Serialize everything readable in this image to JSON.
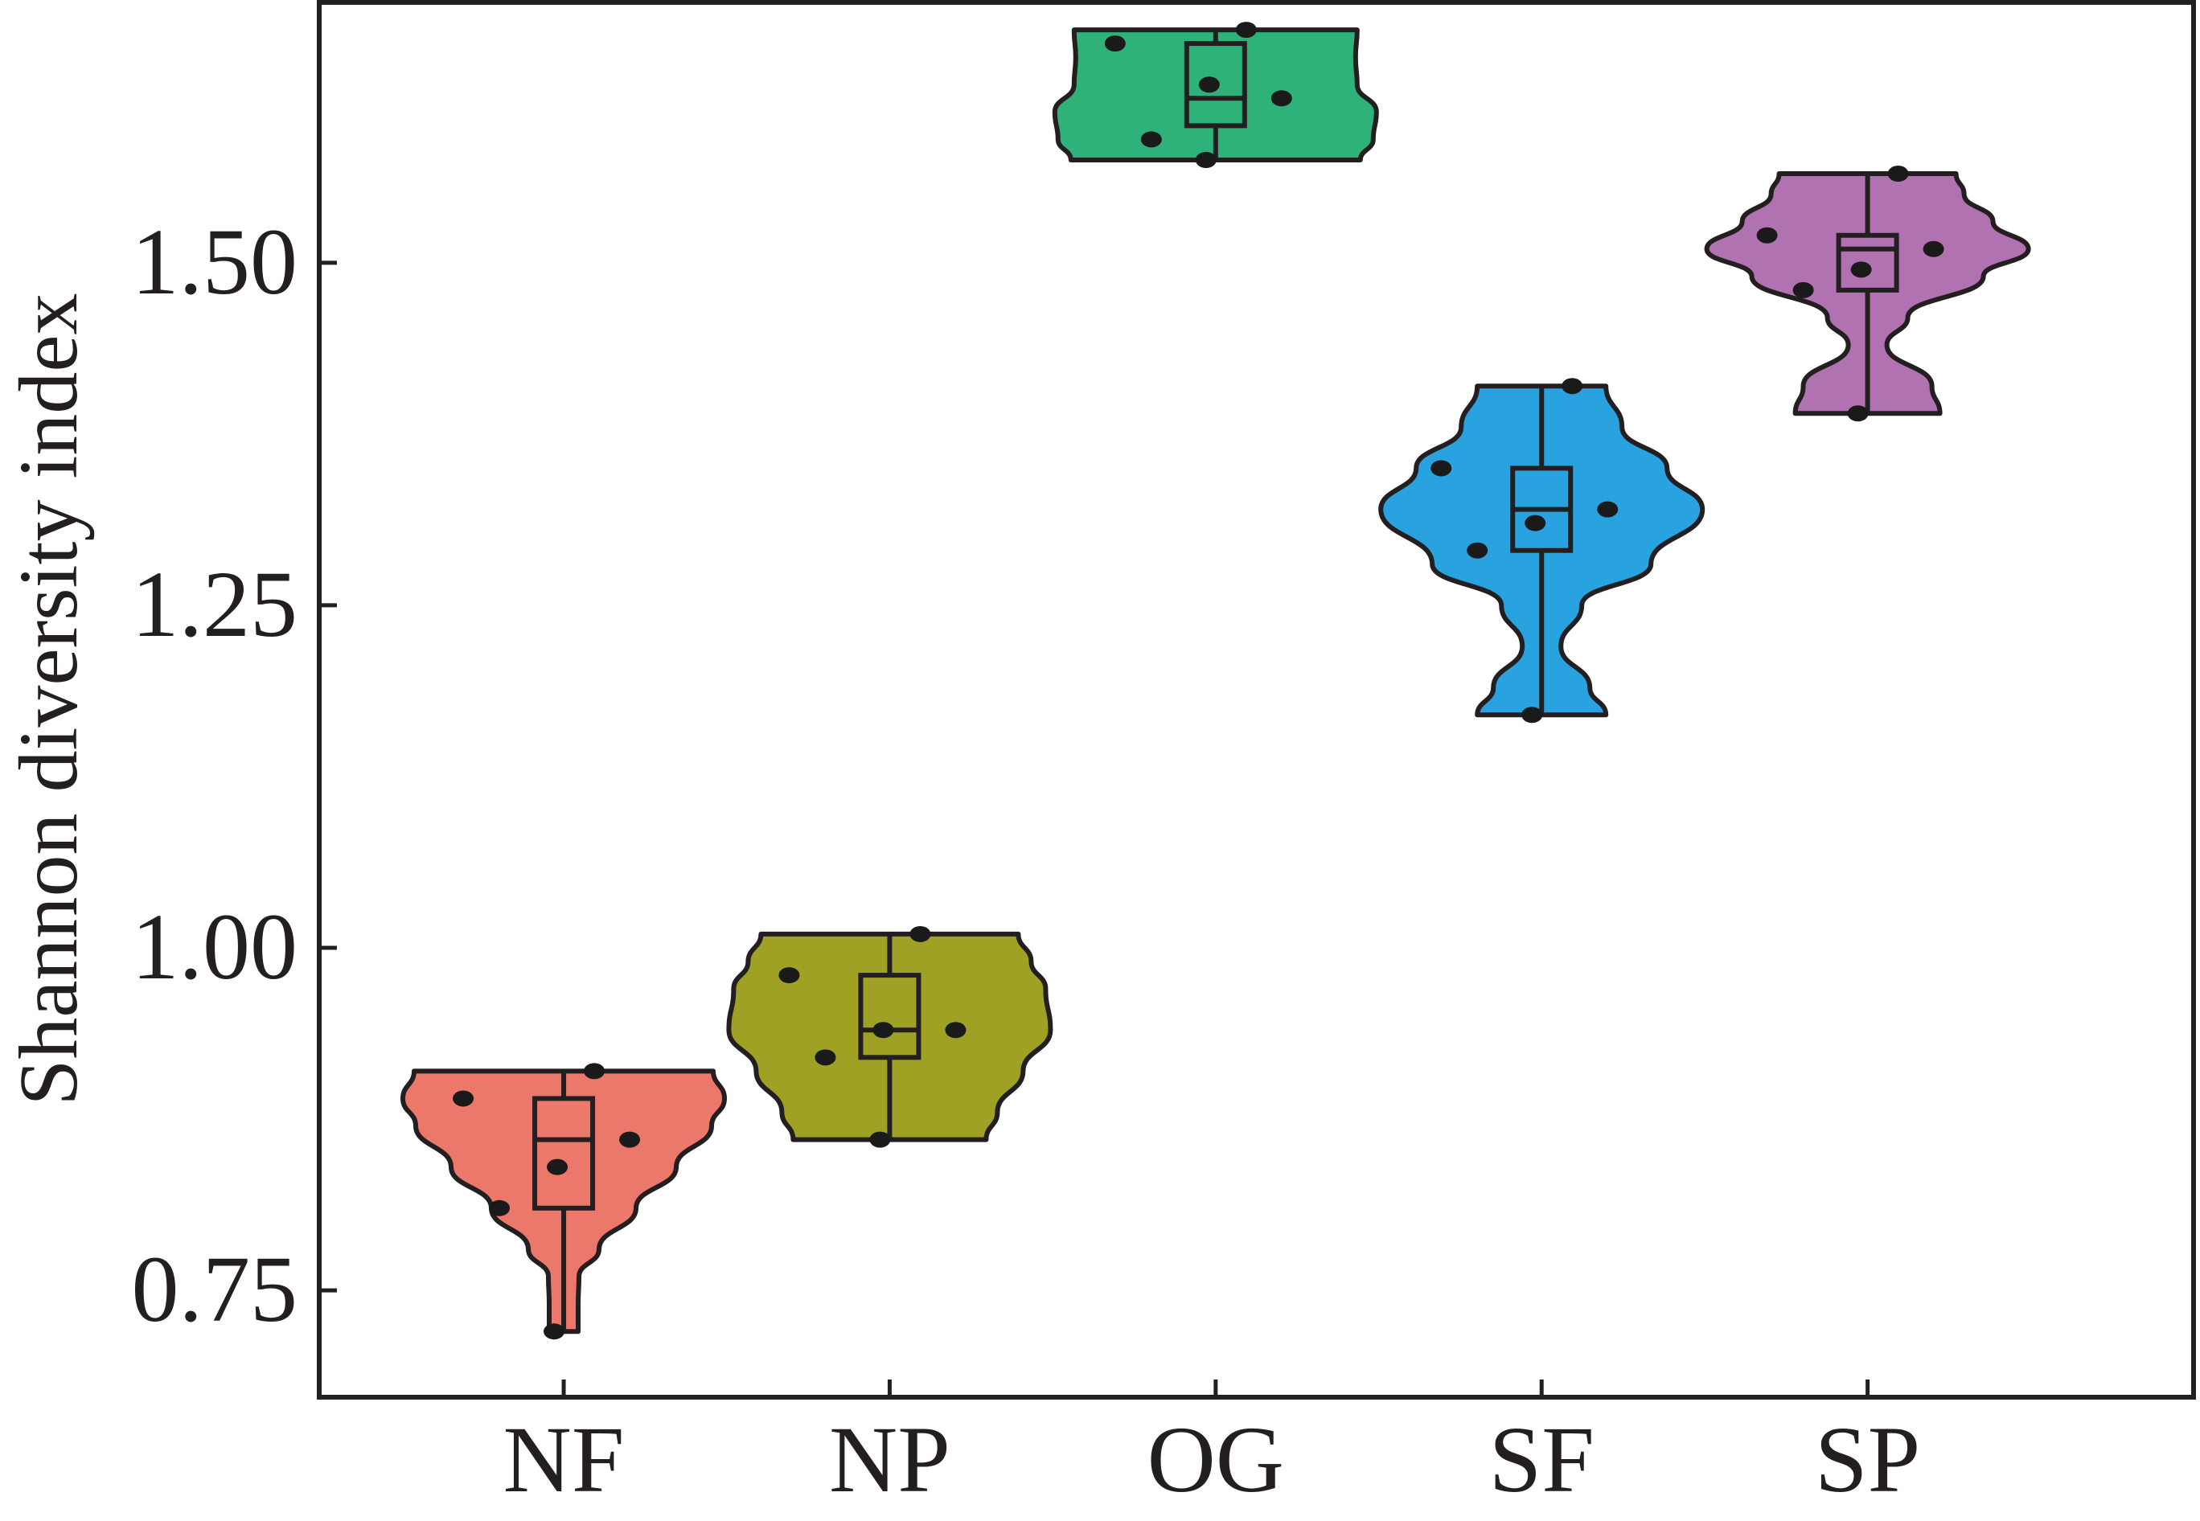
{
  "chart_data": {
    "type": "violin",
    "title": "",
    "xlabel": "",
    "ylabel": "Shannon diversity index",
    "ylim": [
      0.672,
      1.69
    ],
    "yticks": [
      0.75,
      1.0,
      1.25,
      1.5
    ],
    "ytick_labels": [
      "0.75",
      "1.00",
      "1.25",
      "1.50"
    ],
    "grid": false,
    "legend": "none",
    "box_plots": true,
    "categories": [
      "NF",
      "NP",
      "OG",
      "SF",
      "SP"
    ],
    "groups": [
      {
        "name": "NF",
        "color": "#ec776b",
        "min": 0.72,
        "q1": 0.81,
        "median": 0.86,
        "q3": 0.89,
        "max": 0.91,
        "points": [
          0.89,
          0.81,
          0.84,
          0.91,
          0.86,
          0.72
        ],
        "density": [
          [
            0.72,
            0.09
          ],
          [
            0.74,
            0.09
          ],
          [
            0.76,
            0.095
          ],
          [
            0.78,
            0.22
          ],
          [
            0.81,
            0.45
          ],
          [
            0.84,
            0.7
          ],
          [
            0.87,
            0.92
          ],
          [
            0.89,
            1.0
          ],
          [
            0.91,
            0.93
          ]
        ]
      },
      {
        "name": "NP",
        "color": "#9ea123",
        "min": 0.86,
        "q1": 0.92,
        "median": 0.94,
        "q3": 0.98,
        "max": 1.01,
        "points": [
          0.98,
          0.92,
          0.94,
          1.01,
          0.94,
          0.86
        ],
        "density": [
          [
            0.86,
            0.6
          ],
          [
            0.88,
            0.67
          ],
          [
            0.91,
            0.83
          ],
          [
            0.94,
            1.0
          ],
          [
            0.97,
            0.97
          ],
          [
            0.99,
            0.88
          ],
          [
            1.01,
            0.8
          ]
        ]
      },
      {
        "name": "OG",
        "color": "#2fb27a",
        "min": 1.575,
        "q1": 1.6,
        "median": 1.62,
        "q3": 1.66,
        "max": 1.67,
        "points": [
          1.66,
          1.59,
          1.63,
          1.67,
          1.62,
          1.575
        ],
        "density": [
          [
            1.575,
            0.9
          ],
          [
            1.59,
            0.98
          ],
          [
            1.61,
            1.0
          ],
          [
            1.63,
            0.88
          ],
          [
            1.65,
            0.87
          ],
          [
            1.67,
            0.88
          ]
        ]
      },
      {
        "name": "SF",
        "color": "#28a3df",
        "min": 1.17,
        "q1": 1.29,
        "median": 1.32,
        "q3": 1.35,
        "max": 1.41,
        "points": [
          1.35,
          1.29,
          1.31,
          1.41,
          1.32,
          1.17
        ],
        "density": [
          [
            1.17,
            0.4
          ],
          [
            1.19,
            0.3
          ],
          [
            1.22,
            0.12
          ],
          [
            1.25,
            0.25
          ],
          [
            1.28,
            0.68
          ],
          [
            1.32,
            1.0
          ],
          [
            1.35,
            0.78
          ],
          [
            1.38,
            0.5
          ],
          [
            1.41,
            0.4
          ]
        ]
      },
      {
        "name": "SP",
        "color": "#b072b0",
        "min": 1.39,
        "q1": 1.48,
        "median": 1.51,
        "q3": 1.52,
        "max": 1.565,
        "points": [
          1.52,
          1.48,
          1.495,
          1.565,
          1.51,
          1.39
        ],
        "density": [
          [
            1.39,
            0.45
          ],
          [
            1.41,
            0.4
          ],
          [
            1.44,
            0.12
          ],
          [
            1.46,
            0.25
          ],
          [
            1.49,
            0.72
          ],
          [
            1.51,
            1.0
          ],
          [
            1.53,
            0.78
          ],
          [
            1.55,
            0.6
          ],
          [
            1.565,
            0.55
          ]
        ]
      }
    ]
  },
  "style": {
    "axis_color": "#231f20",
    "outline_color": "#231f20",
    "point_color": "#1a1a1a"
  }
}
